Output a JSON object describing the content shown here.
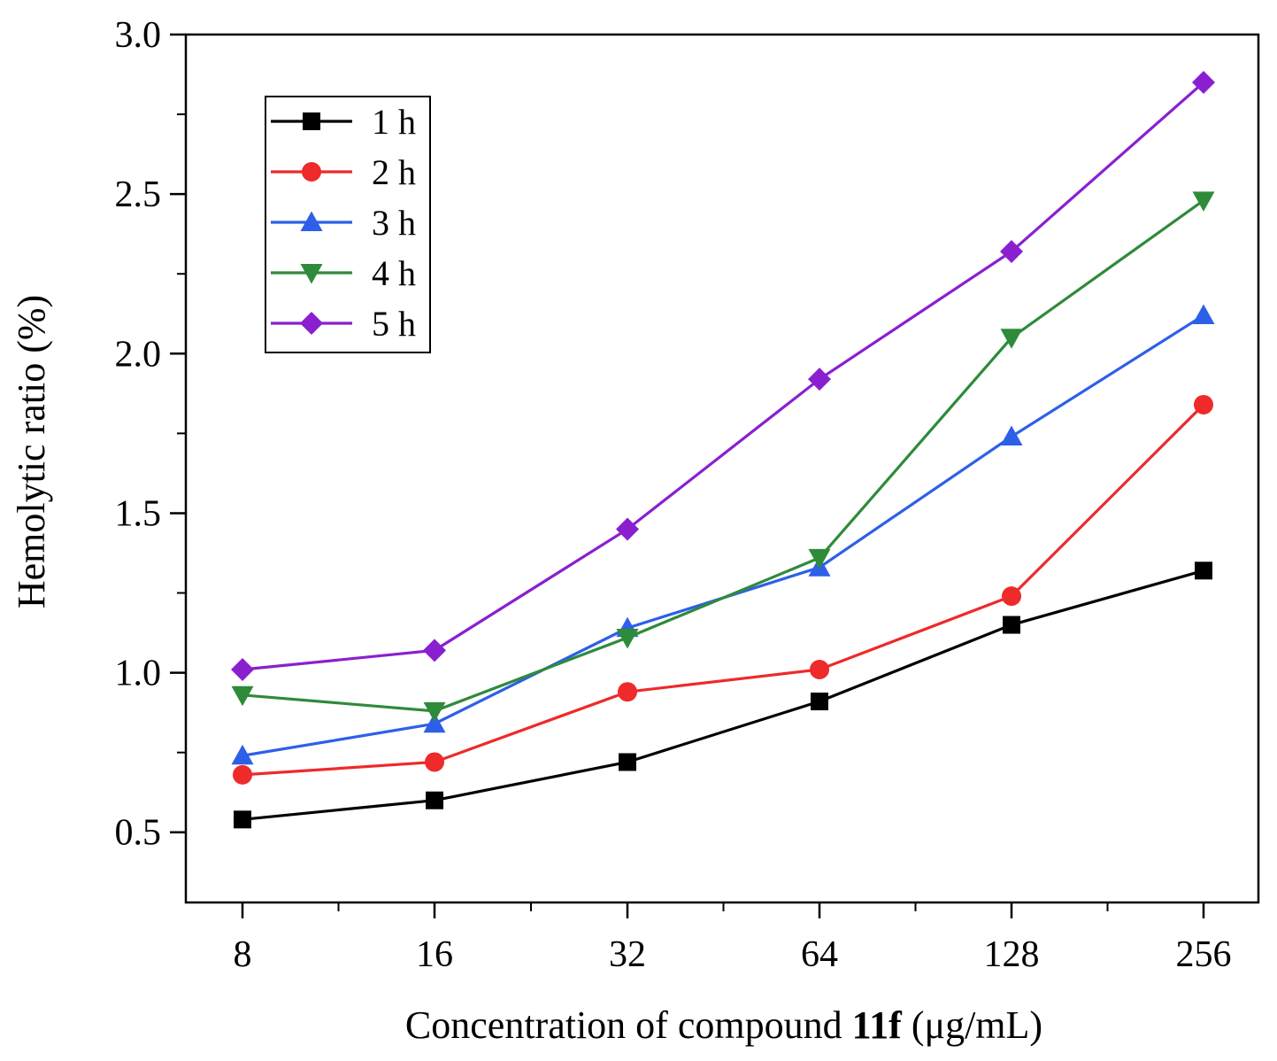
{
  "chart_data": {
    "type": "line",
    "title": "",
    "xlabel_prefix": "Concentration of compound ",
    "xlabel_bold": "11f",
    "xlabel_suffix": " (μg/mL)",
    "ylabel": "Hemolytic ratio (%)",
    "categories": [
      "8",
      "16",
      "32",
      "64",
      "128",
      "256"
    ],
    "ylim": [
      0.28,
      3.0
    ],
    "yticks": [
      "0.5",
      "1.0",
      "1.5",
      "2.0",
      "2.5",
      "3.0"
    ],
    "legend_position": "top-left",
    "grid": false,
    "series": [
      {
        "name": "1 h",
        "color": "#000000",
        "marker": "square",
        "values": [
          0.54,
          0.6,
          0.72,
          0.91,
          1.15,
          1.32
        ]
      },
      {
        "name": "2 h",
        "color": "#ee2a2a",
        "marker": "circle",
        "values": [
          0.68,
          0.72,
          0.94,
          1.01,
          1.24,
          1.84
        ]
      },
      {
        "name": "3 h",
        "color": "#2e5fe8",
        "marker": "triangle-up",
        "values": [
          0.74,
          0.84,
          1.14,
          1.33,
          1.74,
          2.12
        ]
      },
      {
        "name": "4 h",
        "color": "#2e8b3a",
        "marker": "triangle-down",
        "values": [
          0.93,
          0.88,
          1.11,
          1.36,
          2.05,
          2.48
        ]
      },
      {
        "name": "5 h",
        "color": "#8a1fd0",
        "marker": "diamond",
        "values": [
          1.01,
          1.07,
          1.45,
          1.92,
          2.32,
          2.85
        ]
      }
    ]
  }
}
